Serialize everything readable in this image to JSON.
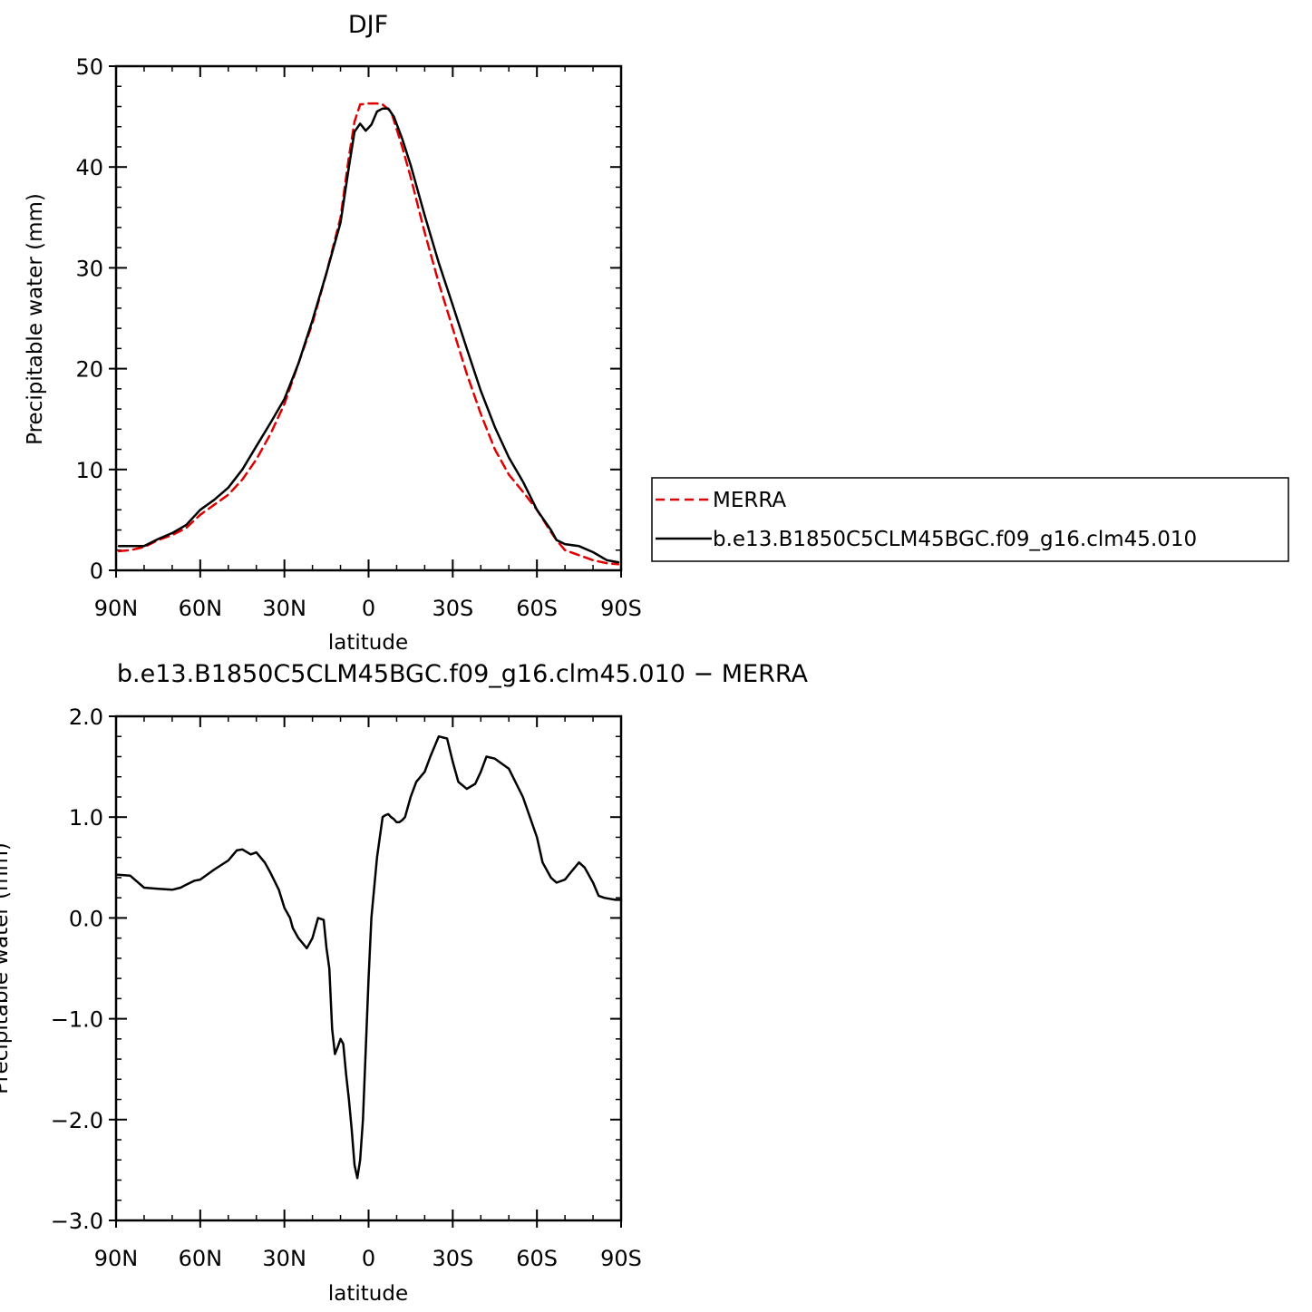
{
  "chart_data": [
    {
      "type": "line",
      "title": "DJF",
      "xlabel": "latitude",
      "ylabel": "Precipitable water (mm)",
      "xlim": [
        -90,
        90
      ],
      "ylim": [
        0,
        50
      ],
      "x_ticks": [
        -90,
        -60,
        -30,
        0,
        30,
        60,
        90
      ],
      "x_tick_labels": [
        "90N",
        "60N",
        "30N",
        "0",
        "30S",
        "60S",
        "90S"
      ],
      "y_ticks": [
        0,
        10,
        20,
        30,
        40,
        50
      ],
      "y_tick_labels": [
        "0",
        "10",
        "20",
        "30",
        "40",
        "50"
      ],
      "legend_position": "right",
      "series": [
        {
          "name": "MERRA",
          "color": "#e00000",
          "dash": "dashed",
          "x": [
            -89,
            -85,
            -80,
            -75,
            -70,
            -65,
            -60,
            -55,
            -50,
            -45,
            -40,
            -35,
            -30,
            -25,
            -20,
            -15,
            -10,
            -7,
            -5,
            -3,
            0,
            3,
            5,
            8,
            12,
            15,
            20,
            25,
            30,
            35,
            40,
            45,
            50,
            55,
            60,
            65,
            67,
            70,
            75,
            80,
            85,
            89
          ],
          "y": [
            1.9,
            2.0,
            2.3,
            3.0,
            3.5,
            4.2,
            5.5,
            6.5,
            7.5,
            9.0,
            11.0,
            13.5,
            16.5,
            20.5,
            24.5,
            29.5,
            35.0,
            41.0,
            44.5,
            46.2,
            46.3,
            46.3,
            46.2,
            45.5,
            42.0,
            39.0,
            33.5,
            28.5,
            24.0,
            19.5,
            15.5,
            12.0,
            9.5,
            7.8,
            6.0,
            3.8,
            3.0,
            2.0,
            1.5,
            1.0,
            0.7,
            0.6
          ]
        },
        {
          "name": "b.e13.B1850C5CLM45BGC.f09_g16.clm45.010",
          "color": "#000000",
          "dash": "solid",
          "x": [
            -89,
            -85,
            -80,
            -75,
            -70,
            -65,
            -60,
            -55,
            -50,
            -45,
            -40,
            -35,
            -30,
            -25,
            -20,
            -15,
            -10,
            -7,
            -5,
            -3,
            -1,
            1,
            3,
            5,
            7,
            9,
            12,
            15,
            20,
            25,
            30,
            35,
            40,
            45,
            50,
            55,
            60,
            65,
            67,
            70,
            75,
            80,
            85,
            89
          ],
          "y": [
            2.4,
            2.4,
            2.4,
            3.1,
            3.7,
            4.5,
            6.0,
            7.0,
            8.2,
            10.0,
            12.3,
            14.6,
            17.0,
            20.5,
            24.8,
            29.5,
            34.5,
            40.0,
            43.5,
            44.3,
            43.6,
            44.2,
            45.5,
            45.8,
            45.8,
            45.0,
            42.8,
            40.2,
            35.2,
            30.5,
            26.3,
            22.0,
            17.8,
            14.2,
            11.2,
            8.8,
            6.0,
            4.0,
            3.0,
            2.6,
            2.4,
            1.8,
            1.0,
            0.8
          ]
        }
      ]
    },
    {
      "type": "line",
      "title": "b.e13.B1850C5CLM45BGC.f09_g16.clm45.010 − MERRA",
      "xlabel": "latitude",
      "ylabel": "Precipitable water (mm)",
      "xlim": [
        -90,
        90
      ],
      "ylim": [
        -3.0,
        2.0
      ],
      "x_ticks": [
        -90,
        -60,
        -30,
        0,
        30,
        60,
        90
      ],
      "x_tick_labels": [
        "90N",
        "60N",
        "30N",
        "0",
        "30S",
        "60S",
        "90S"
      ],
      "y_ticks": [
        -3.0,
        -2.0,
        -1.0,
        0.0,
        1.0,
        2.0
      ],
      "y_tick_labels": [
        "−3.0",
        "−2.0",
        "−1.0",
        "0.0",
        "1.0",
        "2.0"
      ],
      "series": [
        {
          "color": "#000000",
          "dash": "solid",
          "x": [
            -90,
            -85,
            -80,
            -75,
            -70,
            -67,
            -65,
            -62,
            -60,
            -55,
            -50,
            -47,
            -45,
            -42,
            -40,
            -37,
            -35,
            -32,
            -30,
            -28,
            -27,
            -25,
            -22,
            -20,
            -18,
            -16,
            -15,
            -14,
            -13,
            -12,
            -11,
            -10,
            -9,
            -8,
            -7,
            -6,
            -5,
            -4,
            -3,
            -2,
            -1,
            0,
            1,
            2,
            3,
            4,
            5,
            6,
            7,
            8,
            9,
            10,
            11,
            12,
            13,
            15,
            17,
            20,
            22,
            25,
            28,
            30,
            32,
            35,
            38,
            40,
            42,
            45,
            48,
            50,
            55,
            60,
            62,
            65,
            67,
            70,
            72,
            75,
            77,
            80,
            82,
            84,
            86,
            88,
            90
          ],
          "y": [
            0.43,
            0.42,
            0.3,
            0.29,
            0.28,
            0.3,
            0.33,
            0.37,
            0.38,
            0.48,
            0.57,
            0.67,
            0.68,
            0.63,
            0.65,
            0.55,
            0.45,
            0.28,
            0.1,
            0.0,
            -0.1,
            -0.2,
            -0.3,
            -0.2,
            0.0,
            -0.02,
            -0.3,
            -0.5,
            -1.1,
            -1.35,
            -1.28,
            -1.2,
            -1.25,
            -1.55,
            -1.8,
            -2.1,
            -2.45,
            -2.58,
            -2.4,
            -2.0,
            -1.3,
            -0.6,
            0.0,
            0.3,
            0.6,
            0.8,
            1.0,
            1.02,
            1.03,
            1.0,
            0.98,
            0.95,
            0.95,
            0.97,
            1.0,
            1.2,
            1.35,
            1.45,
            1.6,
            1.8,
            1.78,
            1.55,
            1.35,
            1.28,
            1.33,
            1.45,
            1.6,
            1.58,
            1.52,
            1.48,
            1.2,
            0.8,
            0.55,
            0.4,
            0.35,
            0.38,
            0.45,
            0.55,
            0.5,
            0.35,
            0.22,
            0.2,
            0.19,
            0.18,
            0.18
          ]
        }
      ]
    }
  ]
}
